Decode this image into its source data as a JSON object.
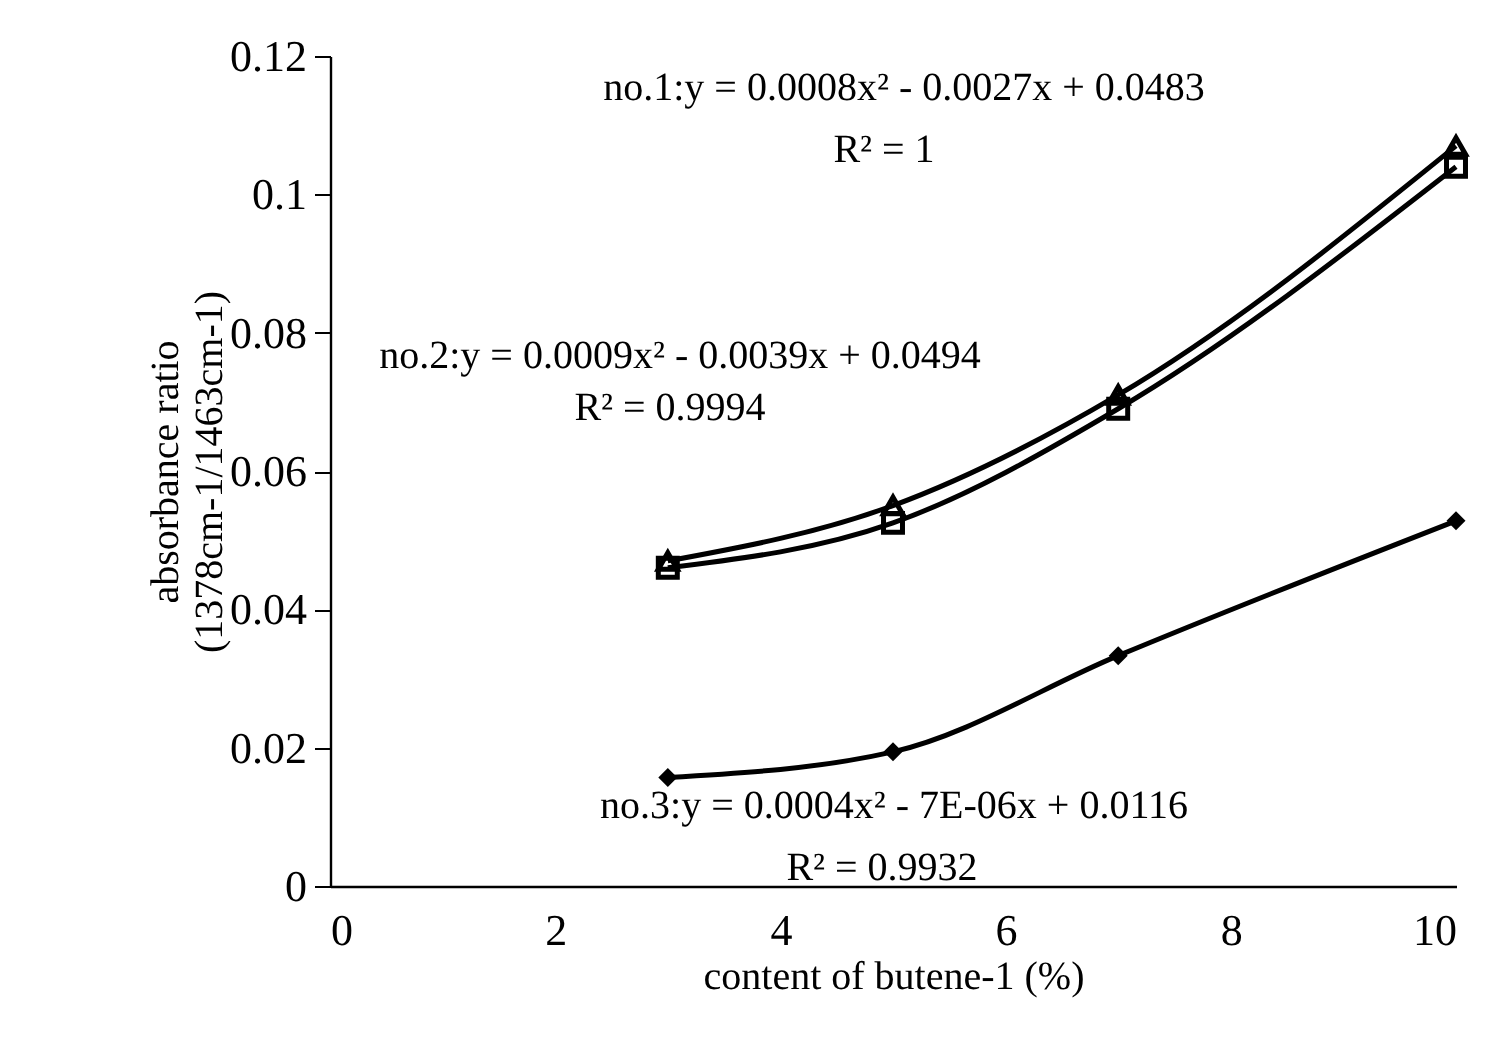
{
  "chart_data": {
    "type": "line",
    "xlabel": "content of butene-1 (%)",
    "ylabel": "absorbance ratio\n(1378cm-1/1463cm-1)",
    "x": [
      3,
      5,
      7,
      10
    ],
    "series": [
      {
        "color": "#000000",
        "marker": "triangle",
        "values": [
          0.047,
          0.055,
          0.071,
          0.107
        ]
      },
      {
        "color": "#000000",
        "marker": "square",
        "values": [
          0.046,
          0.0525,
          0.069,
          0.104
        ]
      },
      {
        "color": "#000000",
        "marker": "diamond",
        "values": [
          0.0157,
          0.0194,
          0.0333,
          0.0528
        ]
      }
    ],
    "xlim": [
      0,
      10
    ],
    "xticks": [
      0,
      2,
      4,
      6,
      8,
      10
    ],
    "ylim": [
      0,
      0.12
    ],
    "yticks": [
      0,
      0.02,
      0.04,
      0.06,
      0.08,
      0.1,
      0.12
    ],
    "grid": false,
    "annotations": [
      "no.1:y = 0.0008x² - 0.0027x + 0.0483",
      "R² = 1",
      "no.2:y = 0.0009x² - 0.0039x + 0.0494",
      "R² = 0.9994",
      "no.3:y = 0.0004x² - 7E-06x + 0.0116",
      "R² = 0.9932"
    ]
  }
}
